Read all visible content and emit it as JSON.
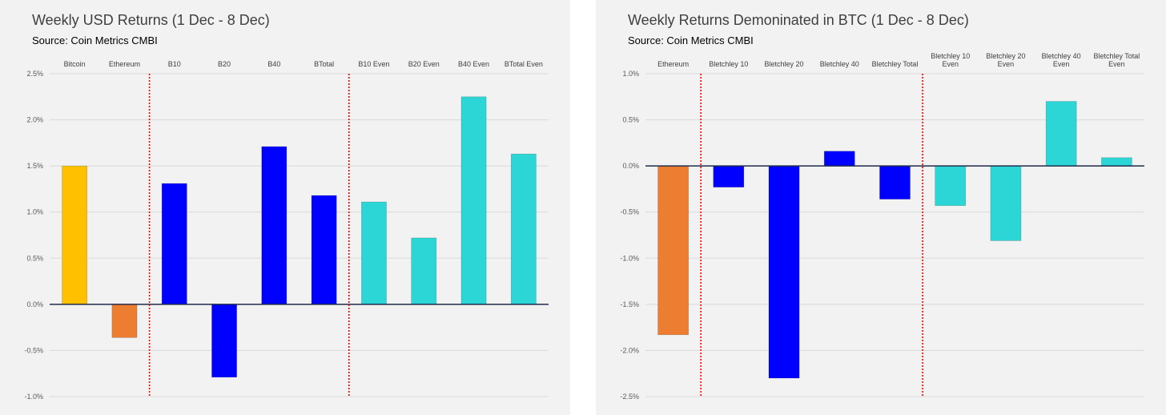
{
  "charts": [
    {
      "title": "Weekly USD Returns (1 Dec - 8 Dec)",
      "subtitle": "Source: Coin Metrics CMBI"
    },
    {
      "title": "Weekly Returns Demoninated in BTC (1 Dec - 8 Dec)",
      "subtitle": "Source: Coin Metrics CMBI"
    }
  ],
  "chart_data": [
    {
      "type": "bar",
      "title": "Weekly USD Returns (1 Dec - 8 Dec)",
      "subtitle": "Source: Coin Metrics CMBI",
      "categories": [
        "Bitcoin",
        "Ethereum",
        "B10",
        "B20",
        "B40",
        "BTotal",
        "B10 Even",
        "B20 Even",
        "B40 Even",
        "BTotal Even"
      ],
      "values": [
        1.5,
        -0.36,
        1.31,
        -0.79,
        1.71,
        1.18,
        1.11,
        0.72,
        2.25,
        1.63
      ],
      "colors": [
        "#ffc000",
        "#ed7d31",
        "#0000ff",
        "#0000ff",
        "#0000ff",
        "#0000ff",
        "#2dd6d6",
        "#2dd6d6",
        "#2dd6d6",
        "#2dd6d6"
      ],
      "ylim": [
        -1.0,
        2.5
      ],
      "yticks": [
        2.5,
        2.0,
        1.5,
        1.0,
        0.5,
        0.0,
        -0.5,
        -1.0
      ],
      "ytick_labels": [
        "2.5%",
        "2.0%",
        "1.5%",
        "1.0%",
        "0.5%",
        "0.0%",
        "-0.5%",
        "-1.0%"
      ],
      "category_label_position": "top",
      "separators_after_index": [
        1,
        5
      ],
      "grid": true,
      "legend": "none"
    },
    {
      "type": "bar",
      "title": "Weekly Returns Demoninated in BTC (1 Dec - 8 Dec)",
      "subtitle": "Source: Coin Metrics CMBI",
      "categories": [
        "Ethereum",
        "Bletchley 10",
        "Bletchley 20",
        "Bletchley 40",
        "Bletchley Total",
        "Bletchley 10 Even",
        "Bletchley 20 Even",
        "Bletchley 40 Even",
        "Bletchley Total Even"
      ],
      "category_label_lines": [
        [
          "Ethereum"
        ],
        [
          "Bletchley 10"
        ],
        [
          "Bletchley 20"
        ],
        [
          "Bletchley 40"
        ],
        [
          "Bletchley Total"
        ],
        [
          "Bletchley 10",
          "Even"
        ],
        [
          "Bletchley 20",
          "Even"
        ],
        [
          "Bletchley 40",
          "Even"
        ],
        [
          "Bletchley Total",
          "Even"
        ]
      ],
      "values": [
        -1.83,
        -0.23,
        -2.3,
        0.16,
        -0.36,
        -0.43,
        -0.81,
        0.7,
        0.09
      ],
      "colors": [
        "#ed7d31",
        "#0000ff",
        "#0000ff",
        "#0000ff",
        "#0000ff",
        "#2dd6d6",
        "#2dd6d6",
        "#2dd6d6",
        "#2dd6d6"
      ],
      "ylim": [
        -2.5,
        1.0
      ],
      "yticks": [
        1.0,
        0.5,
        0.0,
        -0.5,
        -1.0,
        -1.5,
        -2.0,
        -2.5
      ],
      "ytick_labels": [
        "1.0%",
        "0.5%",
        "0.0%",
        "-0.5%",
        "-1.0%",
        "-1.5%",
        "-2.0%",
        "-2.5%"
      ],
      "category_label_position": "top",
      "separators_after_index": [
        0,
        4
      ],
      "grid": true,
      "legend": "none"
    }
  ]
}
